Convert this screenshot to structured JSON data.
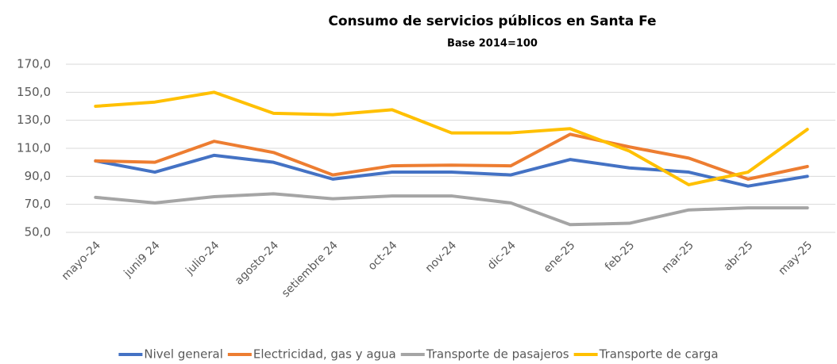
{
  "chart_data": {
    "type": "line",
    "title": "Consumo de servicios públicos en Santa Fe",
    "subtitle": "Base 2014=100",
    "categories": [
      "mayo-24",
      "juni9 24",
      "julio-24",
      "agosto-24",
      "setiembre 24",
      "oct-24",
      "nov-24",
      "dic-24",
      "ene-25",
      "feb-25",
      "mar-25",
      "abr-25",
      "may-25"
    ],
    "series": [
      {
        "name": "Nivel general",
        "color": "#4472c4",
        "values": [
          101,
          93,
          105,
          100,
          88,
          93,
          93,
          91,
          102,
          96,
          93,
          83,
          90
        ]
      },
      {
        "name": "Electricidad, gas y agua",
        "color": "#ed7d31",
        "values": [
          101,
          100,
          115,
          107,
          91,
          97.5,
          98,
          97.5,
          120,
          111,
          103,
          88,
          97
        ]
      },
      {
        "name": "Transporte de pasajeros",
        "color": "#a5a5a5",
        "values": [
          75,
          71,
          75.5,
          77.5,
          74,
          76,
          76,
          71,
          55.5,
          56.5,
          66,
          67.5,
          67.5
        ]
      },
      {
        "name": "Transporte de carga",
        "color": "#ffc000",
        "values": [
          140,
          143,
          150,
          135,
          134,
          137.5,
          121,
          121,
          124,
          108,
          84,
          93,
          123.5
        ]
      }
    ],
    "ylim": [
      50,
      170
    ],
    "yticks": [
      {
        "value": 50,
        "label": "50,0"
      },
      {
        "value": 70,
        "label": "70,0"
      },
      {
        "value": 90,
        "label": "90,0"
      },
      {
        "value": 110,
        "label": "110,0"
      },
      {
        "value": 130,
        "label": "130,0"
      },
      {
        "value": 150,
        "label": "150,0"
      },
      {
        "value": 170,
        "label": "170,0"
      }
    ],
    "grid": true,
    "legend": "bottom"
  }
}
